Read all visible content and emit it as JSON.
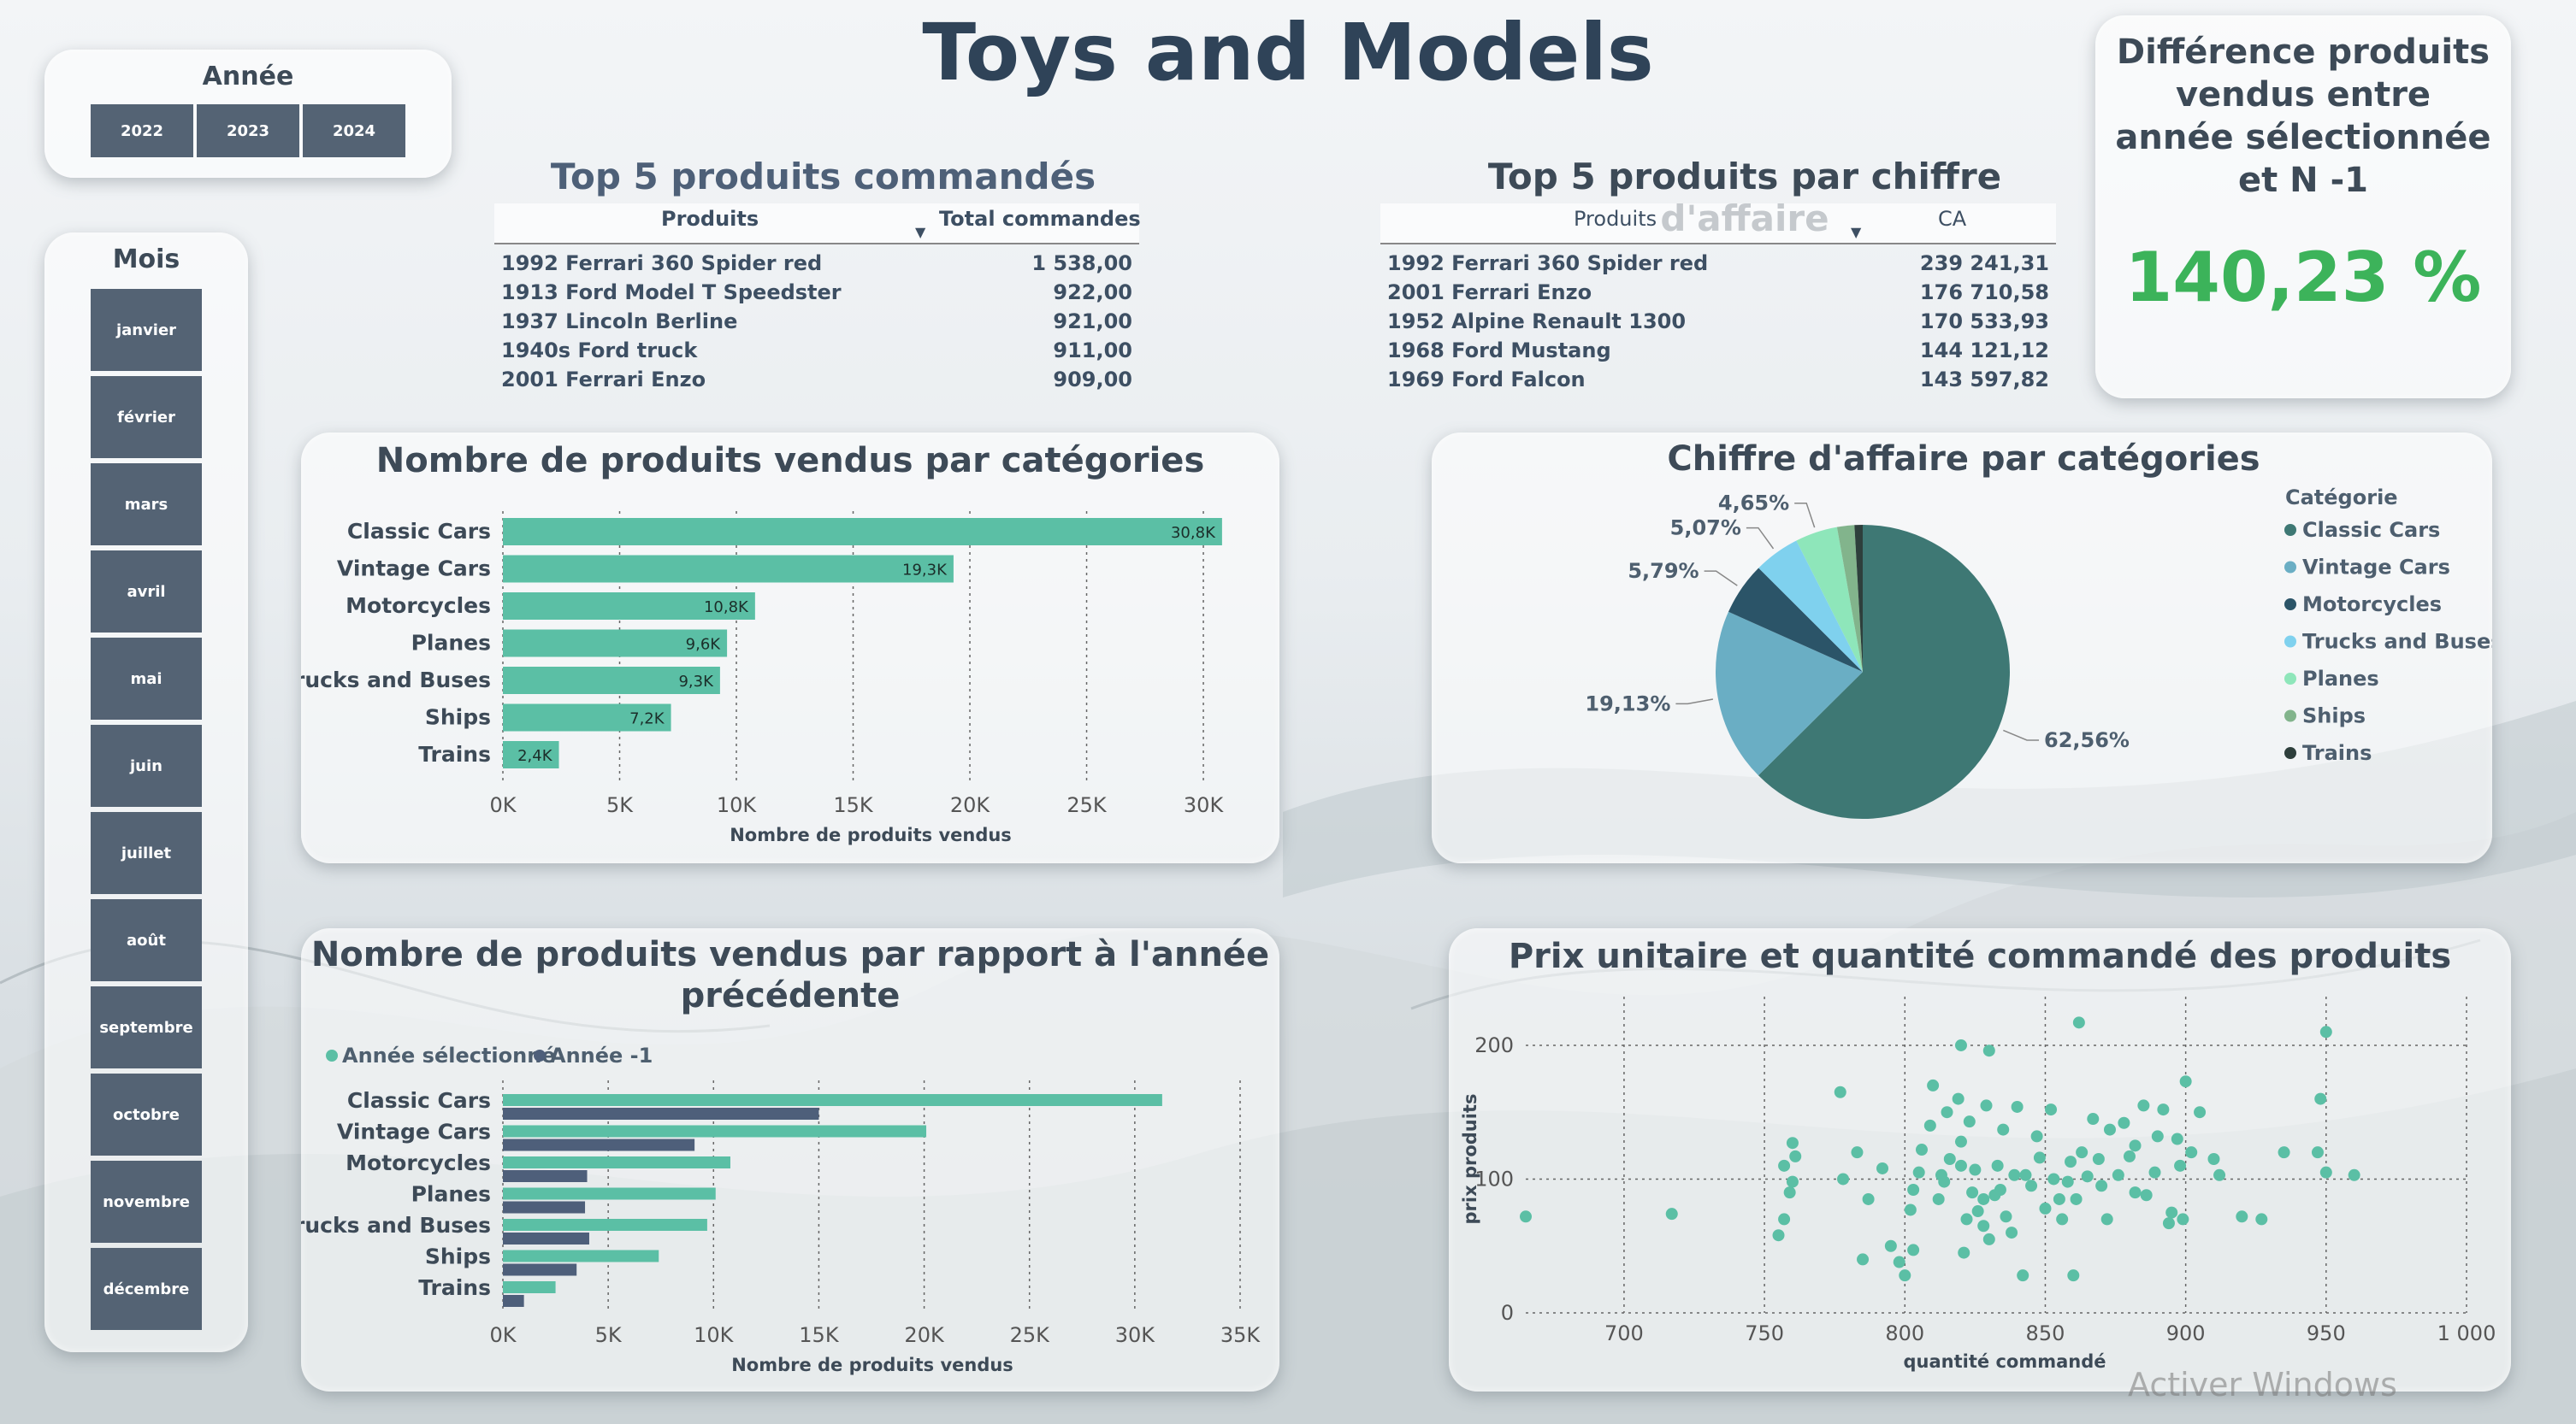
{
  "title": "Toys and Models",
  "year_slicer": {
    "title": "Année",
    "options": [
      "2022",
      "2023",
      "2024"
    ]
  },
  "month_slicer": {
    "title": "Mois",
    "options": [
      "janvier",
      "février",
      "mars",
      "avril",
      "mai",
      "juin",
      "juillet",
      "août",
      "septembre",
      "octobre",
      "novembre",
      "décembre"
    ]
  },
  "kpi": {
    "title": "Différence produits vendus entre année sélectionnée et N -1",
    "value": "140,23 %",
    "color": "#3cb35a"
  },
  "top_orders": {
    "title": "Top 5 produits commandés",
    "headers": [
      "Produits",
      "Total commandes"
    ],
    "rows": [
      {
        "product": "1992 Ferrari 360 Spider red",
        "value": "1 538,00"
      },
      {
        "product": "1913 Ford Model T Speedster",
        "value": "922,00"
      },
      {
        "product": "1937 Lincoln Berline",
        "value": "921,00"
      },
      {
        "product": "1940s Ford truck",
        "value": "911,00"
      },
      {
        "product": "2001 Ferrari Enzo",
        "value": "909,00"
      }
    ]
  },
  "top_revenue": {
    "title": "Top 5 produits par chiffre d'affaire",
    "headers": [
      "Produits",
      "CA"
    ],
    "rows": [
      {
        "product": "1992 Ferrari 360 Spider red",
        "value": "239 241,31"
      },
      {
        "product": "2001 Ferrari Enzo",
        "value": "176 710,58"
      },
      {
        "product": "1952 Alpine Renault 1300",
        "value": "170 533,93"
      },
      {
        "product": "1968 Ford Mustang",
        "value": "144 121,12"
      },
      {
        "product": "1969 Ford Falcon",
        "value": "143 597,82"
      }
    ]
  },
  "colors": {
    "teal": "#5bbfa5",
    "slate": "#4e5f7a"
  },
  "chart_data": [
    {
      "type": "bar",
      "title": "Nombre de produits vendus par catégories",
      "xlabel": "Nombre de produits vendus",
      "categories": [
        "Classic Cars",
        "Vintage Cars",
        "Motorcycles",
        "Planes",
        "Trucks and Buses",
        "Ships",
        "Trains"
      ],
      "values": [
        30800,
        19300,
        10800,
        9600,
        9300,
        7200,
        2400
      ],
      "data_labels": [
        "30,8K",
        "19,3K",
        "10,8K",
        "9,6K",
        "9,3K",
        "7,2K",
        "2,4K"
      ],
      "xlim": [
        0,
        31500
      ],
      "ticks": [
        0,
        5000,
        10000,
        15000,
        20000,
        25000,
        30000
      ],
      "tick_labels": [
        "0K",
        "5K",
        "10K",
        "15K",
        "20K",
        "25K",
        "30K"
      ],
      "grid": true
    },
    {
      "type": "pie",
      "title": "Chiffre d'affaire par catégories",
      "legend_title": "Catégorie",
      "legend_position": "right",
      "slices": [
        {
          "name": "Classic Cars",
          "value": 62.56,
          "label": "62,56%",
          "color": "#3e7874"
        },
        {
          "name": "Vintage Cars",
          "value": 19.13,
          "label": "19,13%",
          "color": "#6aaec4"
        },
        {
          "name": "Motorcycles",
          "value": 5.79,
          "label": "5,79%",
          "color": "#2b5468"
        },
        {
          "name": "Trucks and Buses",
          "value": 5.07,
          "label": "5,07%",
          "color": "#7fd1ee"
        },
        {
          "name": "Planes",
          "value": 4.65,
          "label": "4,65%",
          "color": "#8ee6ba"
        },
        {
          "name": "Ships",
          "value": 1.9,
          "label": "",
          "color": "#82b48c"
        },
        {
          "name": "Trains",
          "value": 0.9,
          "label": "",
          "color": "#2e3f3c"
        }
      ]
    },
    {
      "type": "bar",
      "title": "Nombre de produits vendus par rapport à l'année précédente",
      "xlabel": "Nombre de produits vendus",
      "legend_position": "top-left",
      "categories": [
        "Classic Cars",
        "Vintage Cars",
        "Motorcycles",
        "Planes",
        "Trucks and Buses",
        "Ships",
        "Trains"
      ],
      "series": [
        {
          "name": "Année sélectionné",
          "values": [
            31300,
            20100,
            10800,
            10100,
            9700,
            7400,
            2500
          ]
        },
        {
          "name": "Année -1",
          "values": [
            15000,
            9100,
            4000,
            3900,
            4100,
            3500,
            1000
          ]
        }
      ],
      "xlim": [
        0,
        35000
      ],
      "ticks": [
        0,
        5000,
        10000,
        15000,
        20000,
        25000,
        30000,
        35000
      ],
      "tick_labels": [
        "0K",
        "5K",
        "10K",
        "15K",
        "20K",
        "25K",
        "30K",
        "35K"
      ],
      "grid": true
    },
    {
      "type": "scatter",
      "title": "Prix unitaire et quantité commandé des produits",
      "xlabel": "quantité commandé",
      "ylabel": "prix produits",
      "xlim": [
        665,
        1000
      ],
      "ylim": [
        0,
        230
      ],
      "xticks": [
        700,
        750,
        800,
        850,
        900,
        950,
        1000
      ],
      "xtick_labels": [
        "700",
        "750",
        "800",
        "850",
        "900",
        "950",
        "1 000"
      ],
      "yticks": [
        0,
        100,
        200
      ],
      "ytick_labels": [
        "0",
        "100",
        "200"
      ],
      "grid": true,
      "points": [
        [
          665,
          72
        ],
        [
          717,
          74
        ],
        [
          755,
          58
        ],
        [
          757,
          70
        ],
        [
          759,
          90
        ],
        [
          760,
          98
        ],
        [
          757,
          110
        ],
        [
          761,
          117
        ],
        [
          760,
          127
        ],
        [
          777,
          165
        ],
        [
          783,
          120
        ],
        [
          778,
          100
        ],
        [
          785,
          40
        ],
        [
          787,
          85
        ],
        [
          792,
          108
        ],
        [
          795,
          50
        ],
        [
          798,
          38
        ],
        [
          800,
          28
        ],
        [
          803,
          47
        ],
        [
          802,
          77
        ],
        [
          803,
          92
        ],
        [
          805,
          105
        ],
        [
          806,
          122
        ],
        [
          809,
          140
        ],
        [
          810,
          170
        ],
        [
          812,
          85
        ],
        [
          814,
          98
        ],
        [
          813,
          103
        ],
        [
          815,
          150
        ],
        [
          816,
          115
        ],
        [
          819,
          160
        ],
        [
          820,
          200
        ],
        [
          820,
          128
        ],
        [
          820,
          110
        ],
        [
          822,
          70
        ],
        [
          821,
          45
        ],
        [
          823,
          143
        ],
        [
          824,
          90
        ],
        [
          825,
          107
        ],
        [
          826,
          76
        ],
        [
          828,
          65
        ],
        [
          828,
          85
        ],
        [
          829,
          155
        ],
        [
          830,
          196
        ],
        [
          830,
          55
        ],
        [
          832,
          88
        ],
        [
          834,
          92
        ],
        [
          833,
          110
        ],
        [
          835,
          137
        ],
        [
          836,
          72
        ],
        [
          838,
          60
        ],
        [
          839,
          103
        ],
        [
          840,
          154
        ],
        [
          842,
          28
        ],
        [
          843,
          103
        ],
        [
          845,
          95
        ],
        [
          847,
          132
        ],
        [
          848,
          116
        ],
        [
          850,
          78
        ],
        [
          852,
          152
        ],
        [
          853,
          100
        ],
        [
          855,
          85
        ],
        [
          856,
          70
        ],
        [
          858,
          98
        ],
        [
          859,
          113
        ],
        [
          860,
          28
        ],
        [
          861,
          85
        ],
        [
          862,
          217
        ],
        [
          863,
          120
        ],
        [
          865,
          102
        ],
        [
          867,
          145
        ],
        [
          869,
          115
        ],
        [
          870,
          95
        ],
        [
          872,
          70
        ],
        [
          873,
          137
        ],
        [
          876,
          103
        ],
        [
          878,
          142
        ],
        [
          880,
          117
        ],
        [
          882,
          90
        ],
        [
          882,
          125
        ],
        [
          885,
          155
        ],
        [
          886,
          88
        ],
        [
          889,
          105
        ],
        [
          890,
          132
        ],
        [
          892,
          152
        ],
        [
          894,
          67
        ],
        [
          895,
          75
        ],
        [
          897,
          130
        ],
        [
          898,
          110
        ],
        [
          899,
          70
        ],
        [
          900,
          173
        ],
        [
          902,
          120
        ],
        [
          905,
          150
        ],
        [
          910,
          115
        ],
        [
          912,
          103
        ],
        [
          920,
          72
        ],
        [
          927,
          70
        ],
        [
          935,
          120
        ],
        [
          947,
          120
        ],
        [
          948,
          160
        ],
        [
          950,
          210
        ],
        [
          950,
          105
        ],
        [
          960,
          103
        ]
      ]
    }
  ],
  "watermark": "Activer Windows"
}
